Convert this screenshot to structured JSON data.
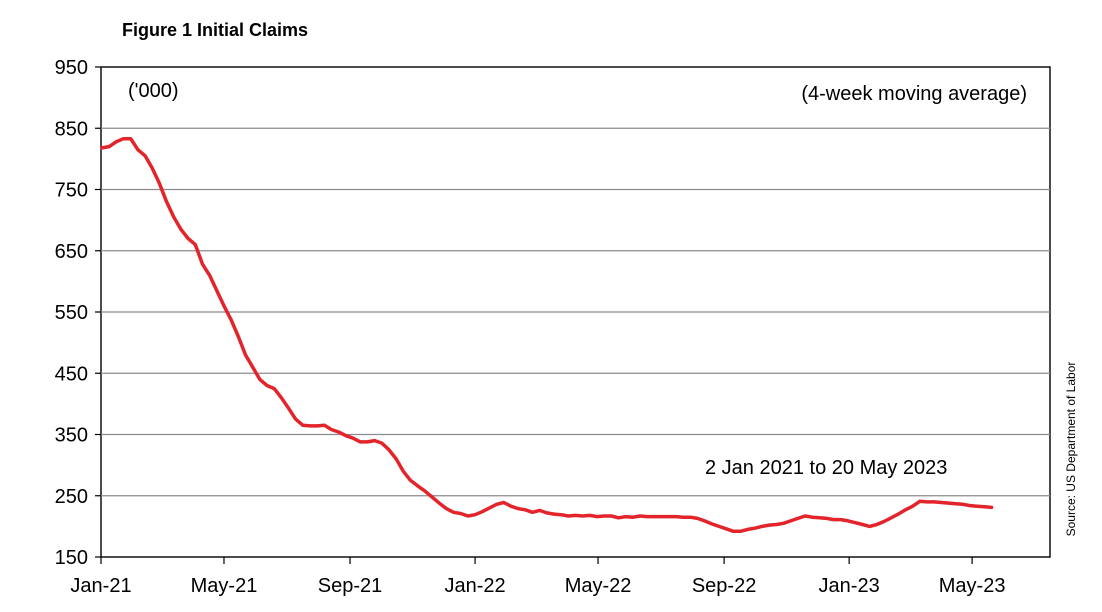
{
  "chart_data": {
    "type": "line",
    "title": "Figure 1 Initial Claims",
    "unit_label": "('000)",
    "subtitle": "(4-week moving average)",
    "annotation": "2 Jan 2021 to 20 May 2023",
    "source": "Source: US Department of Labor",
    "xlabel": "",
    "ylabel": "",
    "ylim": [
      150,
      950
    ],
    "yticks": [
      150,
      250,
      350,
      450,
      550,
      650,
      750,
      850,
      950
    ],
    "xlim": [
      "2021-01-01",
      "2023-07-16"
    ],
    "xticks": [
      {
        "date": "2021-01-01",
        "label": "Jan-21"
      },
      {
        "date": "2021-05-01",
        "label": "May-21"
      },
      {
        "date": "2021-09-01",
        "label": "Sep-21"
      },
      {
        "date": "2022-01-01",
        "label": "Jan-22"
      },
      {
        "date": "2022-05-01",
        "label": "May-22"
      },
      {
        "date": "2022-09-01",
        "label": "Sep-22"
      },
      {
        "date": "2023-01-01",
        "label": "Jan-23"
      },
      {
        "date": "2023-05-01",
        "label": "May-23"
      }
    ],
    "grid": true,
    "line_color": "#e3242b",
    "series": [
      {
        "name": "",
        "x": [
          "2021-01-02",
          "2021-01-09",
          "2021-01-16",
          "2021-01-23",
          "2021-01-30",
          "2021-02-06",
          "2021-02-13",
          "2021-02-20",
          "2021-02-27",
          "2021-03-06",
          "2021-03-13",
          "2021-03-20",
          "2021-03-27",
          "2021-04-03",
          "2021-04-10",
          "2021-04-17",
          "2021-04-24",
          "2021-05-01",
          "2021-05-08",
          "2021-05-15",
          "2021-05-22",
          "2021-05-29",
          "2021-06-05",
          "2021-06-12",
          "2021-06-19",
          "2021-06-26",
          "2021-07-03",
          "2021-07-10",
          "2021-07-17",
          "2021-07-24",
          "2021-07-31",
          "2021-08-07",
          "2021-08-14",
          "2021-08-21",
          "2021-08-28",
          "2021-09-04",
          "2021-09-11",
          "2021-09-18",
          "2021-09-25",
          "2021-10-02",
          "2021-10-09",
          "2021-10-16",
          "2021-10-23",
          "2021-10-30",
          "2021-11-06",
          "2021-11-13",
          "2021-11-20",
          "2021-11-27",
          "2021-12-04",
          "2021-12-11",
          "2021-12-18",
          "2021-12-25",
          "2022-01-01",
          "2022-01-08",
          "2022-01-15",
          "2022-01-22",
          "2022-01-29",
          "2022-02-05",
          "2022-02-12",
          "2022-02-19",
          "2022-02-26",
          "2022-03-05",
          "2022-03-12",
          "2022-03-19",
          "2022-03-26",
          "2022-04-02",
          "2022-04-09",
          "2022-04-16",
          "2022-04-23",
          "2022-04-30",
          "2022-05-07",
          "2022-05-14",
          "2022-05-21",
          "2022-05-28",
          "2022-06-04",
          "2022-06-11",
          "2022-06-18",
          "2022-06-25",
          "2022-07-02",
          "2022-07-09",
          "2022-07-16",
          "2022-07-23",
          "2022-07-30",
          "2022-08-06",
          "2022-08-13",
          "2022-08-20",
          "2022-08-27",
          "2022-09-03",
          "2022-09-10",
          "2022-09-17",
          "2022-09-24",
          "2022-10-01",
          "2022-10-08",
          "2022-10-15",
          "2022-10-22",
          "2022-10-29",
          "2022-11-05",
          "2022-11-12",
          "2022-11-19",
          "2022-11-26",
          "2022-12-03",
          "2022-12-10",
          "2022-12-17",
          "2022-12-24",
          "2022-12-31",
          "2023-01-07",
          "2023-01-14",
          "2023-01-21",
          "2023-01-28",
          "2023-02-04",
          "2023-02-11",
          "2023-02-18",
          "2023-02-25",
          "2023-03-04",
          "2023-03-11",
          "2023-03-18",
          "2023-03-25",
          "2023-04-01",
          "2023-04-08",
          "2023-04-15",
          "2023-04-22",
          "2023-04-29",
          "2023-05-06",
          "2023-05-13",
          "2023-05-20"
        ],
        "values": [
          818,
          820,
          828,
          833,
          833,
          815,
          805,
          785,
          760,
          730,
          705,
          685,
          670,
          660,
          628,
          610,
          585,
          560,
          537,
          510,
          480,
          460,
          440,
          430,
          425,
          410,
          393,
          375,
          365,
          364,
          364,
          365,
          358,
          354,
          348,
          344,
          338,
          338,
          340,
          336,
          325,
          310,
          290,
          275,
          266,
          258,
          248,
          238,
          229,
          223,
          221,
          217,
          219,
          224,
          230,
          236,
          239,
          233,
          229,
          227,
          223,
          226,
          222,
          220,
          219,
          217,
          218,
          217,
          218,
          216,
          217,
          217,
          214,
          216,
          215,
          217,
          216,
          216,
          216,
          216,
          216,
          215,
          215,
          213,
          209,
          204,
          200,
          196,
          192,
          192,
          195,
          197,
          200,
          202,
          203,
          205,
          209,
          213,
          217,
          215,
          214,
          213,
          211,
          211,
          209,
          206,
          203,
          200,
          203,
          208,
          214,
          220,
          227,
          233,
          241,
          240,
          240,
          239,
          238,
          237,
          236,
          234,
          233,
          232,
          231
        ]
      }
    ]
  }
}
